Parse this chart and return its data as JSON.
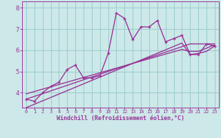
{
  "x": [
    0,
    1,
    2,
    3,
    4,
    5,
    6,
    7,
    8,
    9,
    10,
    11,
    12,
    13,
    14,
    15,
    16,
    17,
    18,
    19,
    20,
    21,
    22,
    23
  ],
  "y_line": [
    3.7,
    3.6,
    4.0,
    4.3,
    4.5,
    5.1,
    5.3,
    4.7,
    4.7,
    4.8,
    5.85,
    7.75,
    7.5,
    6.5,
    7.1,
    7.1,
    7.4,
    6.4,
    6.55,
    6.7,
    5.8,
    5.8,
    6.3,
    6.2
  ],
  "y_reg1": [
    3.7,
    3.83,
    3.96,
    4.09,
    4.22,
    4.35,
    4.48,
    4.61,
    4.74,
    4.87,
    5.0,
    5.13,
    5.26,
    5.39,
    5.52,
    5.65,
    5.78,
    5.91,
    6.04,
    6.17,
    6.3,
    6.3,
    6.3,
    6.3
  ],
  "y_reg2": [
    3.95,
    4.06,
    4.17,
    4.28,
    4.39,
    4.5,
    4.61,
    4.72,
    4.83,
    4.94,
    5.05,
    5.16,
    5.27,
    5.38,
    5.49,
    5.6,
    5.71,
    5.82,
    5.93,
    6.04,
    5.95,
    5.95,
    6.1,
    6.25
  ],
  "y_reg3": [
    3.3,
    3.46,
    3.62,
    3.78,
    3.94,
    4.1,
    4.26,
    4.42,
    4.58,
    4.74,
    4.9,
    5.06,
    5.22,
    5.38,
    5.54,
    5.7,
    5.86,
    6.02,
    6.18,
    6.34,
    5.8,
    5.85,
    5.95,
    6.2
  ],
  "bg_color": "#cce8e8",
  "line_color": "#993399",
  "grid_color": "#99cccc",
  "xlabel": "Windchill (Refroidissement éolien,°C)",
  "xlim": [
    -0.5,
    23.5
  ],
  "ylim": [
    3.3,
    8.3
  ],
  "yticks": [
    4,
    5,
    6,
    7,
    8
  ],
  "xticks": [
    0,
    1,
    2,
    3,
    4,
    5,
    6,
    7,
    8,
    9,
    10,
    11,
    12,
    13,
    14,
    15,
    16,
    17,
    18,
    19,
    20,
    21,
    22,
    23
  ],
  "marker": "P",
  "markersize": 2.5,
  "linewidth": 1.0
}
